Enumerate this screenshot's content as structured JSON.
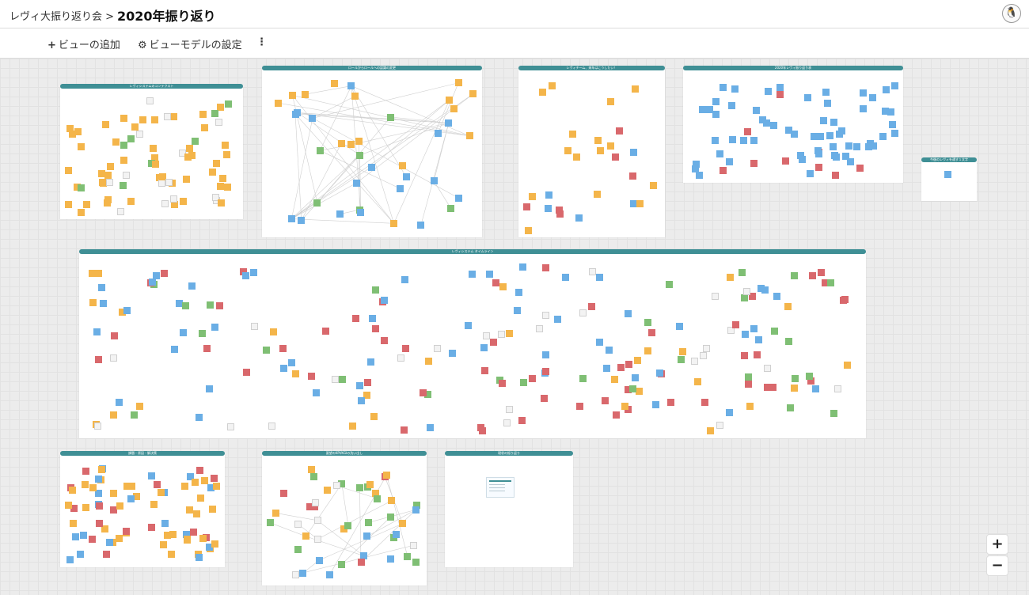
{
  "header": {
    "breadcrumb": "レヴィ大振り返り会 >",
    "title": "2020年振り返り",
    "avatar_icon": "penguin-icon"
  },
  "toolbar": {
    "add_view_icon": "plus-icon",
    "add_view_label": "ビューの追加",
    "view_model_icon": "gear-icon",
    "view_model_label": "ビューモデルの設定",
    "more_icon": "more-vertical-icon"
  },
  "zoom": {
    "in_label": "+",
    "out_label": "−"
  },
  "colors": {
    "orange": "#f4b54a",
    "blue": "#6aaee5",
    "red": "#d9686c",
    "green": "#7fbf74",
    "board_header": "#3f8f95"
  },
  "boards": [
    {
      "id": "b1",
      "title": "レヴィシステムのコンテクスト"
    },
    {
      "id": "b2",
      "title": "ロールからロールへの認識の変更"
    },
    {
      "id": "b3",
      "title": "レヴィチーム、来年はこうしたい！"
    },
    {
      "id": "b4",
      "title": "2020年レヴィ振り返り表"
    },
    {
      "id": "b5",
      "title": "今後のレヴィを通す１文字"
    },
    {
      "id": "b6",
      "title": "レヴィシステム タイムライン"
    },
    {
      "id": "b7",
      "title": "課題・原因・解決策"
    },
    {
      "id": "b8",
      "title": "要望のKPI/KGIの洗い出し"
    },
    {
      "id": "b9",
      "title": "現状の振り返り"
    }
  ]
}
